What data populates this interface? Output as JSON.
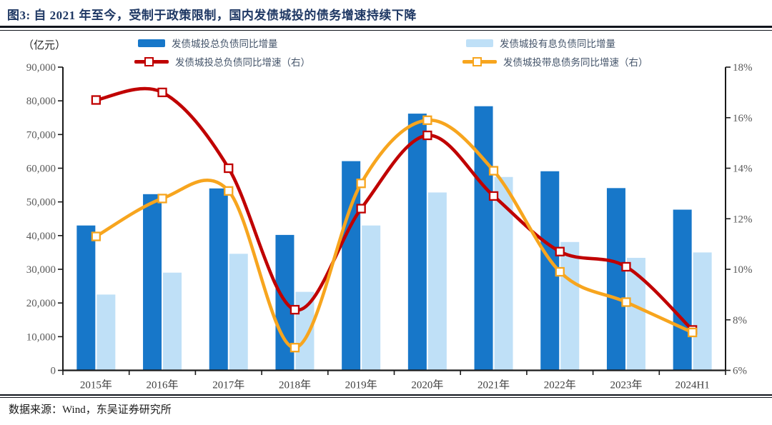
{
  "header": {
    "title": "图3:  自 2021 年至今，受制于政策限制，国内发债城投的债务增速持续下降"
  },
  "footer": {
    "source": "数据来源：Wind，东吴证券研究所"
  },
  "colors": {
    "title_navy": "#1F3864",
    "legend_text": "#44546A",
    "axis_line": "#1a1a1a",
    "tick_label": "#595959",
    "x_label": "#3f3f3f",
    "bar_dark_blue": "#1777C9",
    "bar_light_blue": "#BFE0F7",
    "line_red": "#C00000",
    "line_orange": "#F7A51E"
  },
  "chart_data": {
    "type": "bar",
    "title": "图3:  自 2021 年至今，受制于政策限制，国内发债城投的债务增速持续下降",
    "categories": [
      "2015年",
      "2016年",
      "2017年",
      "2018年",
      "2019年",
      "2020年",
      "2021年",
      "2022年",
      "2023年",
      "2024H1"
    ],
    "series": [
      {
        "name": "发债城投总负债同比增量",
        "type": "bar",
        "axis": "left",
        "color": "#1777C9",
        "values": [
          43000,
          52300,
          54000,
          40200,
          62100,
          76200,
          78400,
          59100,
          54100,
          47700
        ]
      },
      {
        "name": "发债城投有息负债同比增量",
        "type": "bar",
        "axis": "left",
        "color": "#BFE0F7",
        "values": [
          22500,
          29000,
          34600,
          23300,
          43000,
          52800,
          57400,
          38100,
          33400,
          35000
        ]
      },
      {
        "name": "发债城投总负债同比增速（右）",
        "type": "line",
        "axis": "right",
        "color": "#C00000",
        "values": [
          16.7,
          17.0,
          14.0,
          8.4,
          12.4,
          15.3,
          12.9,
          10.7,
          10.1,
          7.6
        ]
      },
      {
        "name": "发债城投带息债务同比增速（右）",
        "type": "line",
        "axis": "right",
        "color": "#F7A51E",
        "values": [
          11.3,
          12.8,
          13.1,
          6.9,
          13.4,
          15.9,
          13.9,
          9.9,
          8.7,
          7.5
        ]
      }
    ],
    "left_axis": {
      "title": "（亿元）",
      "min": 0,
      "max": 90000,
      "step": 10000,
      "format": "thousands"
    },
    "right_axis": {
      "min": 6,
      "max": 18,
      "step": 2,
      "format": "percent"
    },
    "legend_position": "top",
    "grid": false
  }
}
